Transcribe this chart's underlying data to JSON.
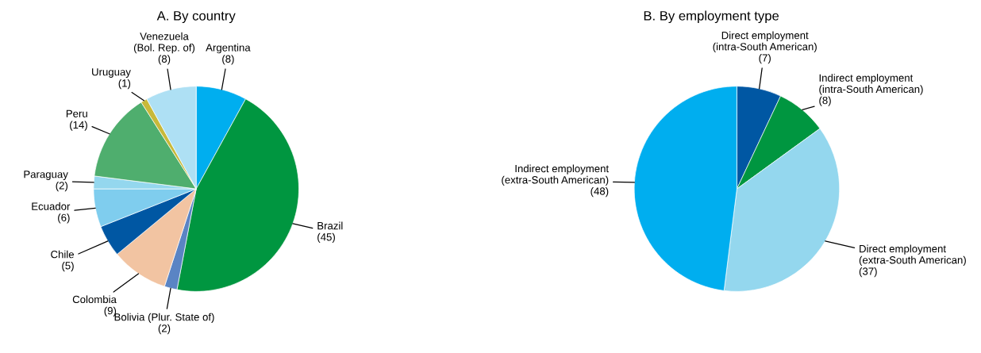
{
  "chart_data": [
    {
      "type": "pie",
      "title": "A. By country",
      "categories": [
        "Argentina",
        "Brazil",
        "Bolivia (Plur. State of)",
        "Colombia",
        "Chile",
        "Ecuador",
        "Paraguay",
        "Peru",
        "Uruguay",
        "Venezuela\n(Bol. Rep. of)"
      ],
      "values": [
        8,
        45,
        2,
        9,
        5,
        6,
        2,
        14,
        1,
        8
      ],
      "colors": [
        "#00aeef",
        "#009640",
        "#5a84c4",
        "#f2c4a2",
        "#0057a3",
        "#7fcdee",
        "#94d7ee",
        "#4fae6e",
        "#c8b93a",
        "#aee0f4"
      ],
      "value_labels": [
        "(8)",
        "(45)",
        "(2)",
        "(9)",
        "(5)",
        "(6)",
        "(2)",
        "(14)",
        "(1)",
        "(8)"
      ]
    },
    {
      "type": "pie",
      "title": "B. By employment type",
      "categories": [
        "Direct employment\n(intra-South American)",
        "Indirect employment\n(intra-South American)",
        "Direct employment\n(extra-South American)",
        "Indirect employment\n(extra-South American)"
      ],
      "values": [
        7,
        8,
        37,
        48
      ],
      "colors": [
        "#0057a3",
        "#009640",
        "#94d7ee",
        "#00aeef"
      ],
      "value_labels": [
        "(7)",
        "(8)",
        "(37)",
        "(48)"
      ]
    }
  ]
}
